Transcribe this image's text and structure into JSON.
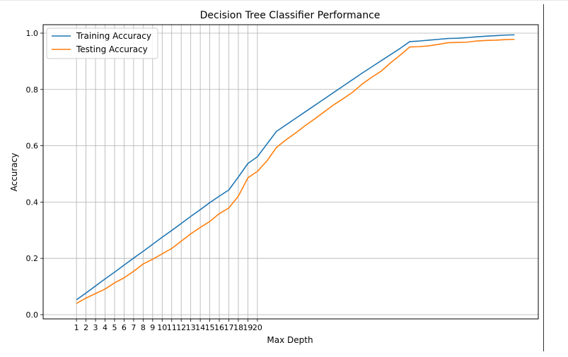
{
  "chart_data": {
    "type": "line",
    "title": "Decision Tree Classifier Performance",
    "xlabel": "Max Depth",
    "ylabel": "Accuracy",
    "xlim": [
      -2.5,
      49.5
    ],
    "ylim": [
      -0.015,
      1.03
    ],
    "xticks": [
      1,
      2,
      3,
      4,
      5,
      6,
      7,
      8,
      9,
      10,
      11,
      12,
      13,
      14,
      15,
      16,
      17,
      18,
      19,
      20
    ],
    "xtick_labels": [
      "1",
      "2",
      "3",
      "4",
      "5",
      "6",
      "7",
      "8",
      "9",
      "10",
      "11",
      "12",
      "13",
      "14",
      "15",
      "16",
      "17",
      "18",
      "19",
      "20"
    ],
    "yticks": [
      0.0,
      0.2,
      0.4,
      0.6,
      0.8,
      1.0
    ],
    "ytick_labels": [
      "0.0",
      "0.2",
      "0.4",
      "0.6",
      "0.8",
      "1.0"
    ],
    "grid": true,
    "legend_position": "upper left",
    "x": [
      1,
      2,
      3,
      4,
      5,
      6,
      7,
      8,
      9,
      10,
      11,
      12,
      13,
      14,
      15,
      16,
      17,
      18,
      19,
      20,
      21,
      22,
      23,
      24,
      25,
      26,
      27,
      28,
      29,
      30,
      31,
      32,
      33,
      34,
      35,
      36,
      37,
      38,
      39,
      40,
      41,
      42,
      43,
      44,
      45,
      46,
      47
    ],
    "series": [
      {
        "name": "Training Accuracy",
        "color": "#1f77b4",
        "values": [
          0.053,
          0.077,
          0.102,
          0.127,
          0.151,
          0.176,
          0.201,
          0.225,
          0.25,
          0.275,
          0.299,
          0.324,
          0.349,
          0.373,
          0.398,
          0.421,
          0.443,
          0.489,
          0.537,
          0.561,
          0.606,
          0.651,
          0.674,
          0.697,
          0.72,
          0.743,
          0.766,
          0.789,
          0.812,
          0.835,
          0.858,
          0.88,
          0.902,
          0.924,
          0.946,
          0.97,
          0.972,
          0.975,
          0.978,
          0.981,
          0.982,
          0.984,
          0.987,
          0.989,
          0.991,
          0.993,
          0.994
        ]
      },
      {
        "name": "Testing Accuracy",
        "color": "#ff7f0e",
        "values": [
          0.04,
          0.059,
          0.075,
          0.091,
          0.113,
          0.131,
          0.154,
          0.18,
          0.197,
          0.216,
          0.235,
          0.261,
          0.287,
          0.31,
          0.331,
          0.359,
          0.379,
          0.421,
          0.486,
          0.509,
          0.546,
          0.594,
          0.621,
          0.645,
          0.671,
          0.695,
          0.72,
          0.745,
          0.767,
          0.79,
          0.819,
          0.843,
          0.865,
          0.895,
          0.922,
          0.951,
          0.952,
          0.955,
          0.96,
          0.966,
          0.967,
          0.968,
          0.972,
          0.974,
          0.975,
          0.977,
          0.978
        ]
      }
    ]
  }
}
